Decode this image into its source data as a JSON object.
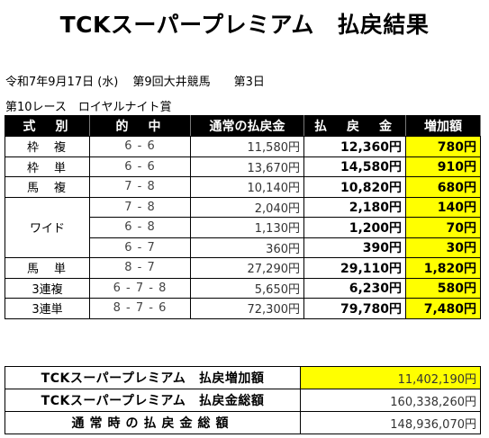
{
  "title": "TCKスーパープレミアム　払戻結果",
  "race_info": {
    "date": "令和7年9月17日 (水)",
    "meeting": "第9回大井競馬",
    "day": "第3日",
    "race": "第10レース　ロイヤルナイト賞"
  },
  "headers": [
    "式　別",
    "的　中",
    "通常の払戻金",
    "払　戻　金",
    "増加額"
  ],
  "rows": [
    {
      "type": "枠　複",
      "combo": "6 - 6",
      "normal": "11,580円",
      "payout": "12,360円",
      "increase": "780円"
    },
    {
      "type": "枠　単",
      "combo": "6 - 6",
      "normal": "13,670円",
      "payout": "14,580円",
      "increase": "910円"
    },
    {
      "type": "馬　複",
      "combo": "7 - 8",
      "normal": "10,140円",
      "payout": "10,820円",
      "increase": "680円"
    },
    {
      "type": "ワイド",
      "combo": "7 - 8",
      "normal": "2,040円",
      "payout": "2,180円",
      "increase": "140円"
    },
    {
      "type": "",
      "combo": "6 - 8",
      "normal": "1,130円",
      "payout": "1,200円",
      "increase": "70円"
    },
    {
      "type": "",
      "combo": "6 - 7",
      "normal": "360円",
      "payout": "390円",
      "increase": "30円"
    },
    {
      "type": "馬　単",
      "combo": "8 - 7",
      "normal": "27,290円",
      "payout": "29,110円",
      "increase": "1,820円"
    },
    {
      "type": "3連複",
      "combo": "6 - 7 - 8",
      "normal": "5,650円",
      "payout": "6,230円",
      "increase": "580円"
    },
    {
      "type": "3連単",
      "combo": "8 - 7 - 6",
      "normal": "72,300円",
      "payout": "79,780円",
      "increase": "7,480円"
    }
  ],
  "summary": [
    {
      "label": "TCKスーパープレミアム　払戻増加額",
      "value": "11,402,190円"
    },
    {
      "label": "TCKスーパープレミアム　払戻金総額",
      "value": "160,338,260円"
    },
    {
      "label": "通常時の払戻金総額",
      "value": "148,936,070円"
    }
  ],
  "colors": {
    "highlight": "#ffff00",
    "header_bg": "#000000",
    "header_text": "#ffffff"
  }
}
